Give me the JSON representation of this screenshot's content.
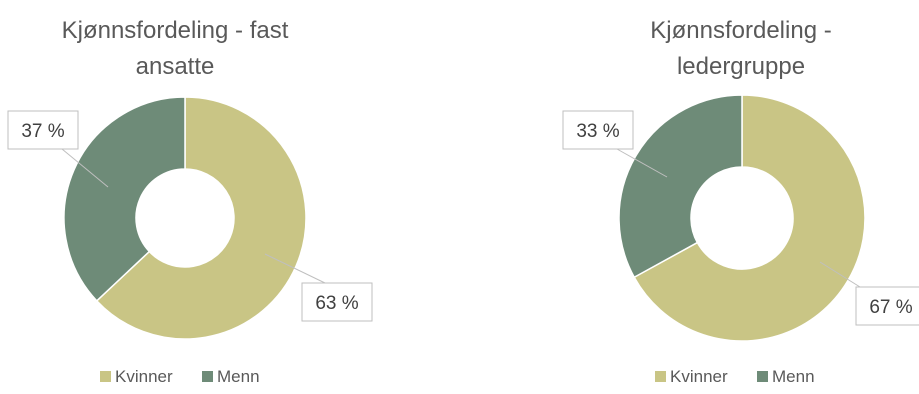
{
  "chart_data": [
    {
      "type": "donut",
      "title": "Kjønnsfordeling - fast ansatte",
      "title_lines": [
        "Kjønnsfordeling - fast",
        "ansatte"
      ],
      "categories": [
        "Kvinner",
        "Menn"
      ],
      "values": [
        63,
        37
      ],
      "unit": "%",
      "data_labels": [
        "63 %",
        "37 %"
      ],
      "colors": [
        "#c9c585",
        "#6e8b78"
      ],
      "legend": [
        "Kvinner",
        "Menn"
      ],
      "legend_position": "bottom"
    },
    {
      "type": "donut",
      "title": "Kjønnsfordeling - ledergruppe",
      "title_lines": [
        "Kjønnsfordeling -",
        "ledergruppe"
      ],
      "categories": [
        "Kvinner",
        "Menn"
      ],
      "values": [
        67,
        33
      ],
      "unit": "%",
      "data_labels": [
        "67 %",
        "33 %"
      ],
      "colors": [
        "#c9c585",
        "#6e8b78"
      ],
      "legend": [
        "Kvinner",
        "Menn"
      ],
      "legend_position": "bottom"
    }
  ]
}
